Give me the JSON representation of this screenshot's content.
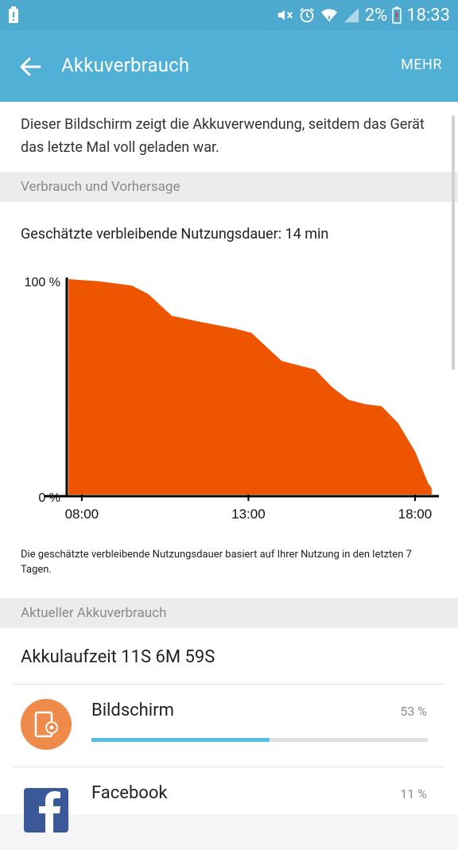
{
  "status_bar": {
    "battery_percent": "2%",
    "time": "18:33",
    "icons": [
      "battery-alert-icon",
      "mute-icon",
      "alarm-icon",
      "wifi-icon",
      "signal-icon",
      "battery-low-icon"
    ]
  },
  "app_bar": {
    "back_icon": "arrow-left-icon",
    "title": "Akkuverbrauch",
    "more_label": "MEHR"
  },
  "intro_text": "Dieser Bildschirm zeigt die Akkuverwendung, seitdem das Gerät das letzte Mal voll geladen war.",
  "section_usage": {
    "heading": "Verbrauch und Vorhersage",
    "estimate": "Geschätzte verbleibende Nutzungsdauer: 14 min",
    "note": "Die geschätzte verbleibende Nutzungsdauer basiert auf Ihrer Nutzung in den letzten 7 Tagen."
  },
  "chart_data": {
    "type": "area",
    "title": "",
    "xlabel": "",
    "ylabel": "",
    "y_tick_labels": [
      "100 %",
      "0 %"
    ],
    "x_tick_labels": [
      "08:00",
      "13:00",
      "18:00"
    ],
    "x_ticks_hours": [
      8,
      13,
      18
    ],
    "xlim_hours": [
      7.55,
      18.55
    ],
    "ylim": [
      0,
      100
    ],
    "fill_color": "#ee5500",
    "series": [
      {
        "x_hours": [
          7.6,
          8.5,
          9.5,
          10.0,
          10.7,
          11.0,
          11.6,
          12.6,
          13.1,
          13.3,
          14.0,
          14.5,
          15.0,
          15.5,
          16.0,
          16.5,
          17.0,
          17.5,
          18.0,
          18.4,
          18.5
        ],
        "y_percent": [
          100,
          99,
          97,
          93,
          83,
          82,
          80,
          77,
          75,
          72,
          62,
          60,
          58,
          50,
          44,
          42,
          41,
          33,
          20,
          5,
          3
        ]
      }
    ]
  },
  "section_current": {
    "heading": "Aktueller Akkuverbrauch",
    "runtime": "Akkulaufzeit 11S 6M 59S",
    "apps": [
      {
        "name": "Bildschirm",
        "percent": "53 %",
        "share": 53,
        "icon": "screen-icon",
        "icon_color": "#ee8a4a"
      },
      {
        "name": "Facebook",
        "percent": "11 %",
        "share": 11,
        "icon": "facebook-icon",
        "icon_color": "#3b5998"
      }
    ]
  },
  "colors": {
    "status_bar": "#4ea9cf",
    "app_bar": "#50b0d6",
    "chart_fill": "#ee5500",
    "usage_bar": "#54bee6"
  }
}
